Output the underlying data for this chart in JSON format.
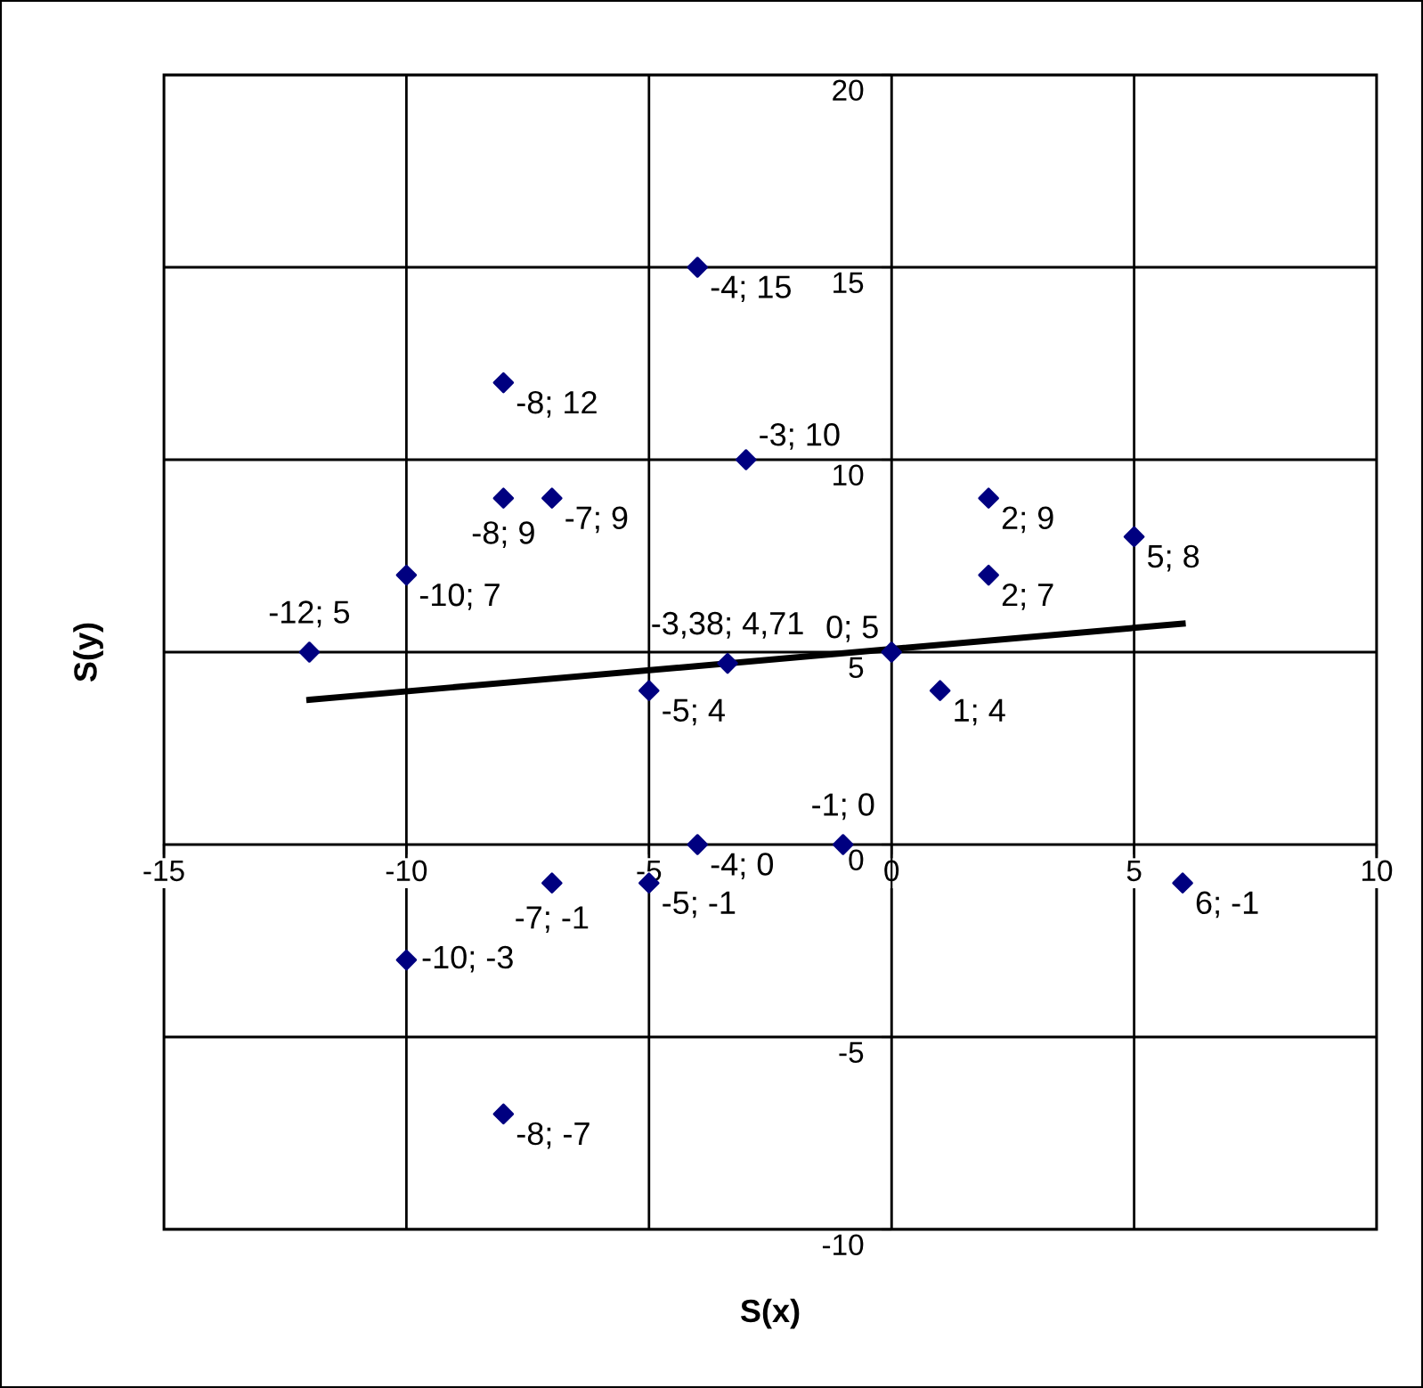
{
  "chart_data": {
    "type": "scatter",
    "xlabel": "S(x)",
    "ylabel": "S(y)",
    "xlim": [
      -15,
      10
    ],
    "xticks": [
      -15,
      -10,
      -5,
      0,
      5,
      10
    ],
    "ylim": [
      -10,
      20
    ],
    "yticks": [
      -10,
      -5,
      0,
      5,
      10,
      15,
      20
    ],
    "grid": true,
    "marker": "diamond",
    "legend": false,
    "series": [
      {
        "type": "scatter",
        "color": "#000080",
        "x": [
          -4,
          -8,
          -3,
          -8,
          -7,
          2,
          -10,
          2,
          5,
          -12,
          0,
          -3.38,
          -5,
          1,
          -4,
          -1,
          -7,
          -5,
          6,
          -10,
          -8
        ],
        "values": [
          15,
          12,
          10,
          9,
          9,
          9,
          7,
          7,
          8,
          5,
          5,
          4.71,
          4,
          4,
          0,
          0,
          -1,
          -1,
          -1,
          -3,
          -7
        ]
      },
      {
        "type": "line",
        "color": "#000000",
        "marker": "none",
        "line_style": "solid",
        "x": [
          -12,
          6
        ],
        "values": [
          3.76,
          5.74
        ]
      }
    ],
    "annotations": [
      {
        "text": "-4; 15",
        "x": -4,
        "y": 15
      },
      {
        "text": "-8; 12",
        "x": -8,
        "y": 12
      },
      {
        "text": "-3; 10",
        "x": -3,
        "y": 10
      },
      {
        "text": "-8; 9",
        "x": -8,
        "y": 9
      },
      {
        "text": "-7; 9",
        "x": -7,
        "y": 9
      },
      {
        "text": "2; 9",
        "x": 2,
        "y": 9
      },
      {
        "text": "-10; 7",
        "x": -10,
        "y": 7
      },
      {
        "text": "2; 7",
        "x": 2,
        "y": 7
      },
      {
        "text": "5; 8",
        "x": 5,
        "y": 8
      },
      {
        "text": "-12; 5",
        "x": -12,
        "y": 5
      },
      {
        "text": "0; 5",
        "x": 0,
        "y": 5
      },
      {
        "text": "-3,38; 4,71",
        "x": -3.38,
        "y": 4.71
      },
      {
        "text": "-5; 4",
        "x": -5,
        "y": 4
      },
      {
        "text": "1; 4",
        "x": 1,
        "y": 4
      },
      {
        "text": "-4; 0",
        "x": -4,
        "y": 0
      },
      {
        "text": "-1; 0",
        "x": -1,
        "y": 0
      },
      {
        "text": "-7; -1",
        "x": -7,
        "y": -1
      },
      {
        "text": "-5; -1",
        "x": -5,
        "y": -1
      },
      {
        "text": "6; -1",
        "x": 6,
        "y": -1
      },
      {
        "text": "-10; -3",
        "x": -10,
        "y": -3
      },
      {
        "text": "-8; -7",
        "x": -8,
        "y": -7
      }
    ]
  }
}
